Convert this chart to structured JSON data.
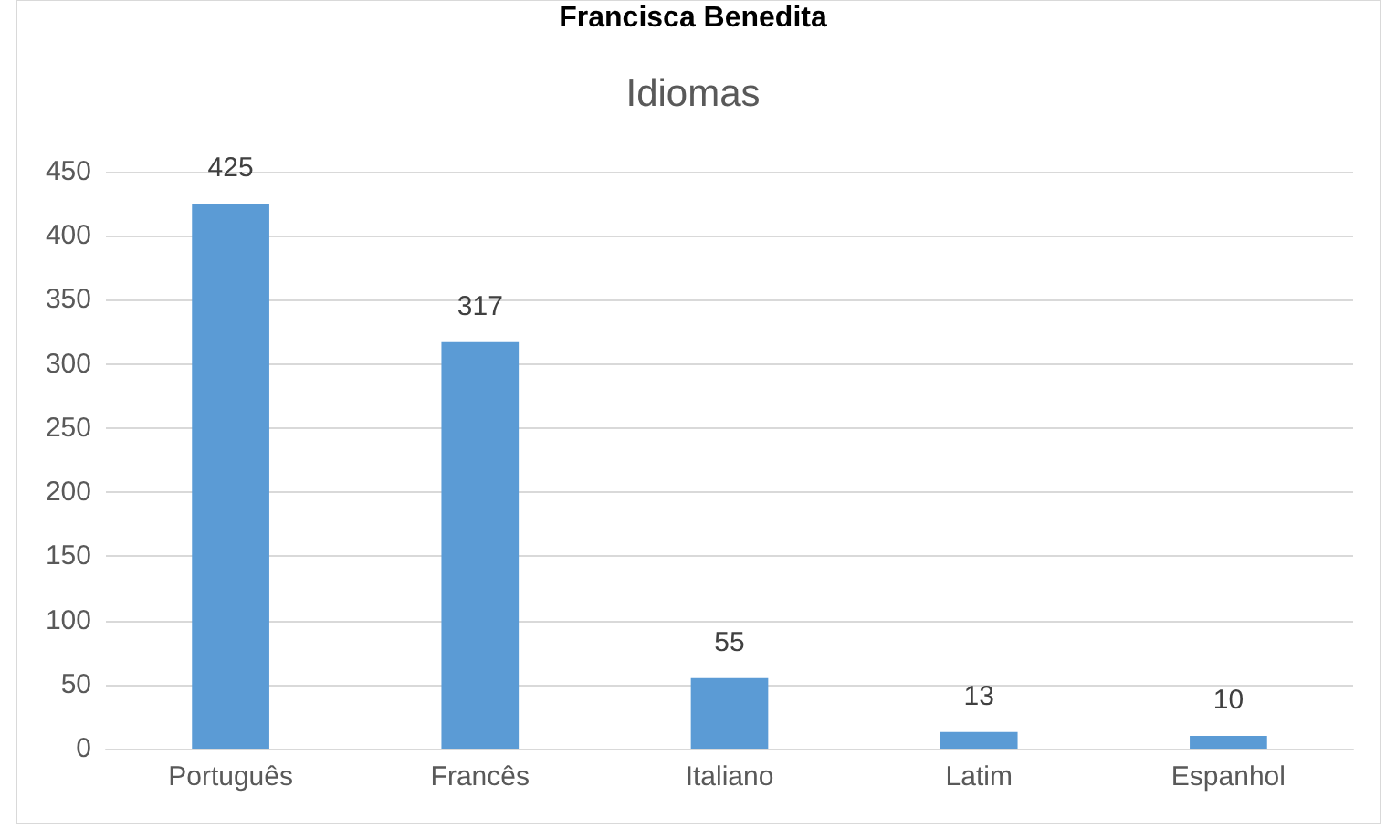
{
  "chart_data": {
    "type": "bar",
    "title": "Idiomas",
    "annotations": [
      "Francisca Benedita"
    ],
    "categories": [
      "Português",
      "Francês",
      "Italiano",
      "Latim",
      "Espanhol"
    ],
    "values": [
      425,
      317,
      55,
      13,
      10
    ],
    "color": "#5b9bd5",
    "ylim": [
      0,
      450
    ],
    "yticks": [
      0,
      50,
      100,
      150,
      200,
      250,
      300,
      350,
      400,
      450
    ],
    "grid": "y",
    "data_labels": true
  }
}
